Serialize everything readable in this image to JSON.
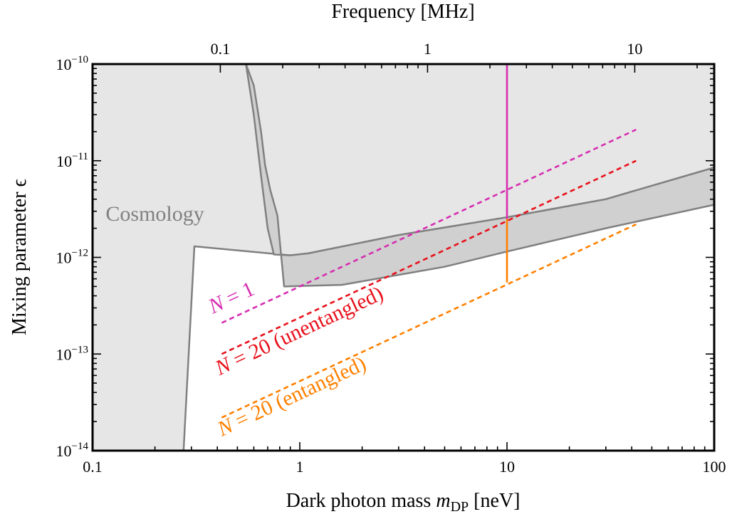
{
  "chart_data": {
    "type": "line",
    "xlabel_prefix": "Dark photon mass ",
    "xlabel_var": "m",
    "xlabel_sub": "DP",
    "xlabel_suffix": " [neV]",
    "ylabel": "Mixing parameter ϵ",
    "x2label": "Frequency [MHz]",
    "xscale": "log",
    "yscale": "log",
    "xlim": [
      0.1,
      100
    ],
    "ylim": [
      1e-14,
      1e-10
    ],
    "x_ticks": [
      {
        "value": 0.1,
        "label": "0.1"
      },
      {
        "value": 1,
        "label": "1"
      },
      {
        "value": 10,
        "label": "10"
      },
      {
        "value": 100,
        "label": "100"
      }
    ],
    "y_ticks": [
      {
        "value": 1e-14,
        "base": "10",
        "exp": "−14"
      },
      {
        "value": 1e-13,
        "base": "10",
        "exp": "−13"
      },
      {
        "value": 1e-12,
        "base": "10",
        "exp": "−12"
      },
      {
        "value": 1e-11,
        "base": "10",
        "exp": "−11"
      },
      {
        "value": 1e-10,
        "base": "10",
        "exp": "−10"
      }
    ],
    "x2_ticks": [
      {
        "mass": 0.4136,
        "label": "0.1"
      },
      {
        "mass": 4.136,
        "label": "1"
      },
      {
        "mass": 41.36,
        "label": "10"
      }
    ],
    "regions": [
      {
        "name": "Cosmology",
        "color": "#e6e6e6",
        "boundary": [
          [
            0.1,
            1e-14
          ],
          [
            0.275,
            1e-14
          ],
          [
            0.31,
            1.3e-12
          ],
          [
            0.9,
            1.05e-12
          ],
          [
            1.1,
            1.1e-12
          ],
          [
            3,
            1.7e-12
          ],
          [
            10,
            2.6e-12
          ],
          [
            30,
            4e-12
          ],
          [
            100,
            8.5e-12
          ],
          [
            100,
            1e-10
          ],
          [
            0.1,
            1e-10
          ]
        ]
      },
      {
        "name": "",
        "color": "#d0d0d0",
        "boundary": [
          [
            0.55,
            1e-10
          ],
          [
            0.6,
            6e-11
          ],
          [
            0.65,
            2e-11
          ],
          [
            0.68,
            9e-12
          ],
          [
            0.72,
            5e-12
          ],
          [
            0.78,
            2.7e-12
          ],
          [
            0.8,
            1.5e-12
          ],
          [
            0.84,
            5e-13
          ],
          [
            1.6,
            5.2e-13
          ],
          [
            5,
            8e-13
          ],
          [
            10,
            1.15e-12
          ],
          [
            30,
            2e-12
          ],
          [
            100,
            3.5e-12
          ],
          [
            100,
            8.5e-12
          ],
          [
            30,
            4e-12
          ],
          [
            10,
            2.6e-12
          ],
          [
            3,
            1.7e-12
          ],
          [
            1.1,
            1.1e-12
          ],
          [
            0.9,
            1.05e-12
          ],
          [
            0.75,
            1.07e-12
          ],
          [
            0.7,
            2e-12
          ],
          [
            0.65,
            7e-12
          ],
          [
            0.6,
            3e-11
          ],
          [
            0.55,
            1e-10
          ]
        ]
      }
    ],
    "series": [
      {
        "name": "N = 1",
        "color": "#d62eb0",
        "style": "dashed",
        "points": [
          [
            0.42,
            2.1e-13
          ],
          [
            42,
            2.1e-11
          ]
        ]
      },
      {
        "name": "N = 20 (unentangled)",
        "color": "#e8111b",
        "style": "dashed",
        "points": [
          [
            0.42,
            1e-13
          ],
          [
            42,
            1e-11
          ]
        ]
      },
      {
        "name": "N = 20 (entangled)",
        "color": "#ff8000",
        "style": "dashed",
        "points": [
          [
            0.42,
            2.2e-14
          ],
          [
            42,
            2.2e-12
          ]
        ]
      }
    ],
    "vertical_segments": [
      {
        "x": 10,
        "y_range": [
          2.5e-12,
          1e-10
        ],
        "color": "#d62eb0"
      },
      {
        "x": 10,
        "y_range": [
          5.5e-13,
          2.5e-12
        ],
        "color": "#ff8000"
      }
    ],
    "curve_labels": [
      {
        "var": "N",
        "rest": " = 1",
        "color": "#d62eb0",
        "at": [
          0.38,
          2.6e-13
        ]
      },
      {
        "var": "N",
        "rest": " = 20 (unentangled)",
        "color": "#e8111b",
        "at": [
          0.41,
          6e-14
        ]
      },
      {
        "var": "N",
        "rest": " = 20 (entangled)",
        "color": "#ff8000",
        "at": [
          0.42,
          1.4e-14
        ]
      }
    ],
    "region_labels": [
      {
        "text": "Cosmology",
        "at": [
          0.2,
          2.4e-12
        ]
      }
    ],
    "boundary_color": "#808080",
    "grid": false
  }
}
